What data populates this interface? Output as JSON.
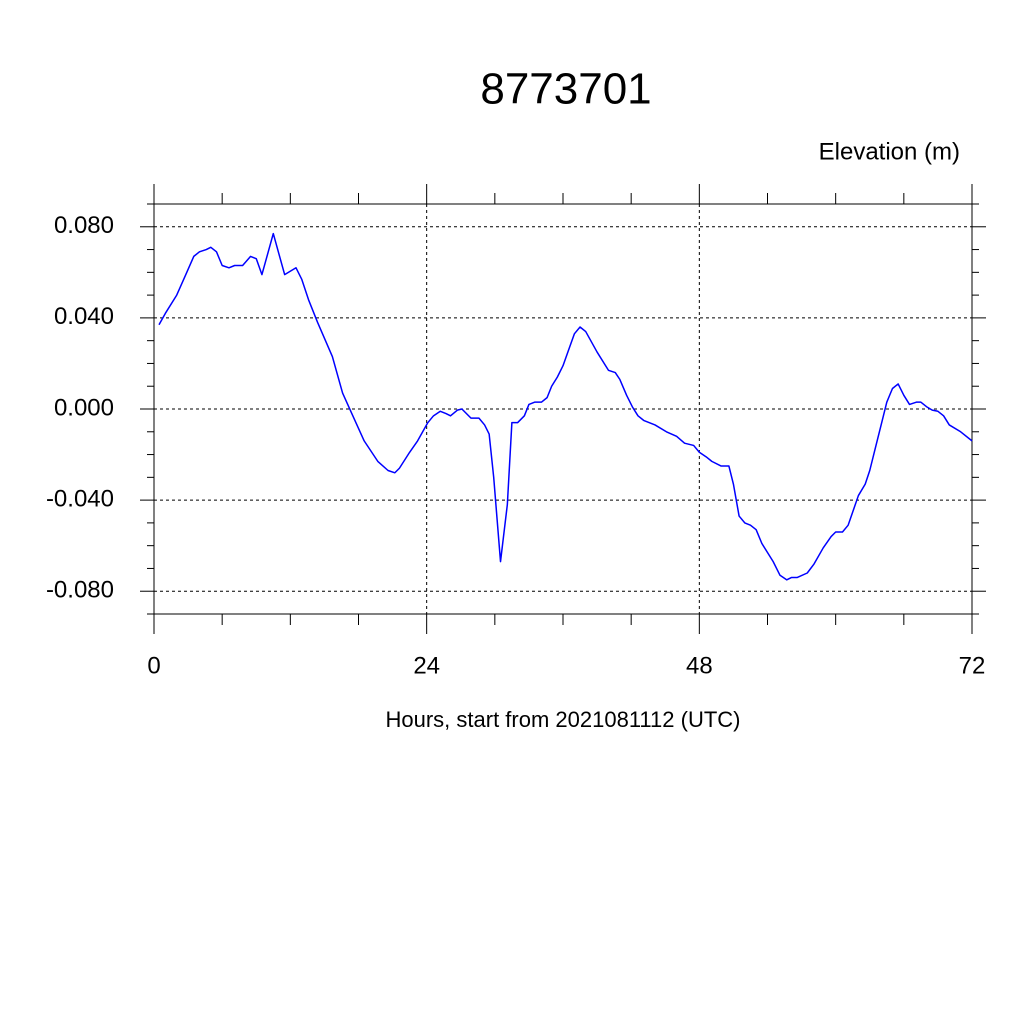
{
  "chart_data": {
    "type": "line",
    "title": "8773701",
    "subtitle": "Elevation (m)",
    "x_label": "Hours, start from 2021081112 (UTC)",
    "xlim": [
      0,
      72
    ],
    "xticks": [
      0,
      24,
      48,
      72
    ],
    "xminorticks": [
      6,
      12,
      18,
      30,
      36,
      42,
      54,
      60,
      66
    ],
    "ylim": [
      -0.09,
      0.09
    ],
    "yticks": [
      {
        "value": -0.08,
        "label": "-0.080"
      },
      {
        "value": -0.04,
        "label": "-0.040"
      },
      {
        "value": 0,
        "label": "0.000"
      },
      {
        "value": 0.04,
        "label": "0.040"
      },
      {
        "value": 0.08,
        "label": "0.080"
      }
    ],
    "yminorticks": [
      -0.09,
      -0.07,
      -0.06,
      -0.05,
      -0.03,
      -0.02,
      -0.01,
      0.01,
      0.02,
      0.03,
      0.05,
      0.06,
      0.07,
      0.09
    ],
    "grid": true,
    "series": [
      {
        "color": "#0000ff",
        "x": [
          0.44,
          1,
          2,
          2.8,
          3.5,
          4,
          4.6,
          5,
          5.5,
          6,
          6.6,
          7.1,
          7.8,
          8.5,
          9,
          9.5,
          10.5,
          11.5,
          12.5,
          13,
          13.6,
          14.4,
          15.7,
          16.6,
          17.5,
          18.5,
          19.7,
          20.6,
          21.2,
          21.6,
          22.5,
          23.2,
          24.1,
          24.6,
          25.2,
          25.7,
          26.1,
          26.7,
          27.1,
          27.9,
          28.6,
          29.1,
          29.5,
          29.9,
          30.5,
          31.1,
          31.5,
          32,
          32.6,
          33,
          33.5,
          34.1,
          34.6,
          35,
          35.5,
          36,
          36.5,
          37,
          37.5,
          38,
          39,
          40,
          40.6,
          41,
          41.6,
          42.1,
          42.6,
          43.1,
          44.1,
          45.1,
          46,
          46.7,
          47.5,
          48,
          48.6,
          49.1,
          49.9,
          50.6,
          51,
          51.5,
          52,
          52.5,
          53,
          53.5,
          54.5,
          55.1,
          55.7,
          56.1,
          56.6,
          57.5,
          58.1,
          58.9,
          59.6,
          60,
          60.6,
          61.1,
          62,
          62.6,
          63,
          63.5,
          64.1,
          64.5,
          65,
          65.5,
          66,
          66.5,
          67.1,
          67.5,
          68,
          68.5,
          69,
          69.5,
          70,
          71,
          72
        ],
        "values": [
          0.037,
          0.042,
          0.05,
          0.059,
          0.067,
          0.069,
          0.07,
          0.071,
          0.069,
          0.063,
          0.062,
          0.063,
          0.063,
          0.067,
          0.066,
          0.059,
          0.077,
          0.059,
          0.062,
          0.057,
          0.048,
          0.038,
          0.023,
          0.007,
          -0.003,
          -0.014,
          -0.023,
          -0.027,
          -0.028,
          -0.026,
          -0.019,
          -0.014,
          -0.006,
          -0.003,
          -0.001,
          -0.002,
          -0.003,
          -0.0005,
          0,
          -0.004,
          -0.004,
          -0.007,
          -0.011,
          -0.03,
          -0.067,
          -0.042,
          -0.006,
          -0.006,
          -0.003,
          0.002,
          0.003,
          0.003,
          0.005,
          0.01,
          0.014,
          0.019,
          0.026,
          0.033,
          0.036,
          0.034,
          0.025,
          0.017,
          0.016,
          0.013,
          0.006,
          0.001,
          -0.003,
          -0.005,
          -0.007,
          -0.01,
          -0.012,
          -0.015,
          -0.016,
          -0.019,
          -0.021,
          -0.023,
          -0.025,
          -0.025,
          -0.033,
          -0.047,
          -0.05,
          -0.051,
          -0.053,
          -0.059,
          -0.067,
          -0.073,
          -0.075,
          -0.074,
          -0.074,
          -0.072,
          -0.068,
          -0.061,
          -0.056,
          -0.054,
          -0.054,
          -0.051,
          -0.038,
          -0.033,
          -0.027,
          -0.017,
          -0.005,
          0.003,
          0.009,
          0.011,
          0.006,
          0.002,
          0.003,
          0.003,
          0.001,
          -0.0005,
          -0.001,
          -0.003,
          -0.007,
          -0.01,
          -0.014
        ]
      }
    ]
  }
}
